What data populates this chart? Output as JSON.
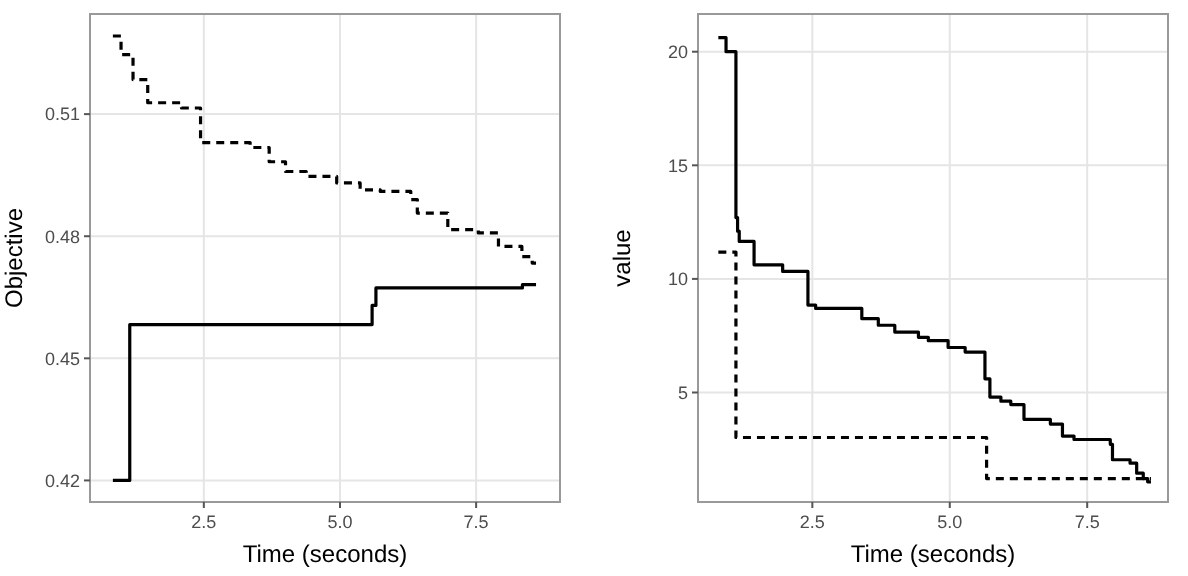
{
  "chart_data": [
    {
      "type": "step",
      "xlabel": "Time (seconds)",
      "ylabel": "Objective",
      "xlim": [
        0.41,
        9.04
      ],
      "xticks": [
        {
          "value": 2.5,
          "label": "2.5"
        },
        {
          "value": 5,
          "label": "5.0"
        },
        {
          "value": 7.5,
          "label": "7.5"
        }
      ],
      "ylim": [
        0.4147,
        0.5346
      ],
      "yticks": [
        {
          "value": 0.42,
          "label": "0.42"
        },
        {
          "value": 0.45,
          "label": "0.45"
        },
        {
          "value": 0.48,
          "label": "0.48"
        },
        {
          "value": 0.51,
          "label": "0.51"
        }
      ],
      "grid": true,
      "series": [
        {
          "color": "#000000",
          "line_style": "solid",
          "x": [
            0.83,
            1.14,
            5.59,
            5.66,
            8.35,
            8.6
          ],
          "values": [
            0.42,
            0.4583,
            0.463,
            0.4673,
            0.4681,
            0.4681
          ]
        },
        {
          "color": "#000000",
          "line_style": "dashed",
          "x": [
            0.83,
            0.98,
            1.2,
            1.47,
            2.09,
            2.44,
            3.35,
            3.7,
            4.0,
            4.38,
            4.94,
            5.37,
            5.74,
            6.3,
            6.42,
            6.98,
            7.54,
            7.91,
            8.34,
            8.53,
            8.6
          ],
          "values": [
            0.5292,
            0.5246,
            0.5185,
            0.5128,
            0.5115,
            0.503,
            0.5018,
            0.4983,
            0.4959,
            0.4947,
            0.4931,
            0.4914,
            0.491,
            0.489,
            0.4857,
            0.4816,
            0.4808,
            0.4775,
            0.475,
            0.4734,
            0.4734
          ]
        }
      ]
    },
    {
      "type": "step",
      "xlabel": "Time (seconds)",
      "ylabel": "value",
      "xlim": [
        0.42,
        8.97
      ],
      "xticks": [
        {
          "value": 2.5,
          "label": "2.5"
        },
        {
          "value": 5,
          "label": "5.0"
        },
        {
          "value": 7.5,
          "label": "7.5"
        }
      ],
      "ylim": [
        0.18,
        21.66
      ],
      "yticks": [
        5,
        10,
        15,
        20
      ],
      "grid": true,
      "series": [
        {
          "color": "#000000",
          "line_style": "solid",
          "x": [
            0.79,
            0.93,
            1.11,
            1.14,
            1.17,
            1.44,
            1.96,
            2.42,
            2.56,
            3.4,
            3.7,
            4.0,
            4.43,
            4.61,
            4.97,
            5.28,
            5.64,
            5.73,
            5.93,
            6.11,
            6.35,
            6.83,
            7.05,
            7.26,
            7.92,
            7.96,
            8.28,
            8.4,
            8.52,
            8.6,
            8.66
          ],
          "values": [
            20.62,
            20,
            12.7,
            12.1,
            11.65,
            10.62,
            10.33,
            8.85,
            8.7,
            8.25,
            7.96,
            7.66,
            7.43,
            7.28,
            6.98,
            6.78,
            5.6,
            4.8,
            4.62,
            4.47,
            3.82,
            3.61,
            3.08,
            2.93,
            2.72,
            2.04,
            1.89,
            1.45,
            1.21,
            1.07,
            1.07
          ]
        },
        {
          "color": "#000000",
          "line_style": "dashed",
          "x": [
            0.79,
            1.11,
            5.67,
            8.66
          ],
          "values": [
            11.18,
            3.02,
            1.21,
            1.21
          ]
        }
      ]
    }
  ]
}
